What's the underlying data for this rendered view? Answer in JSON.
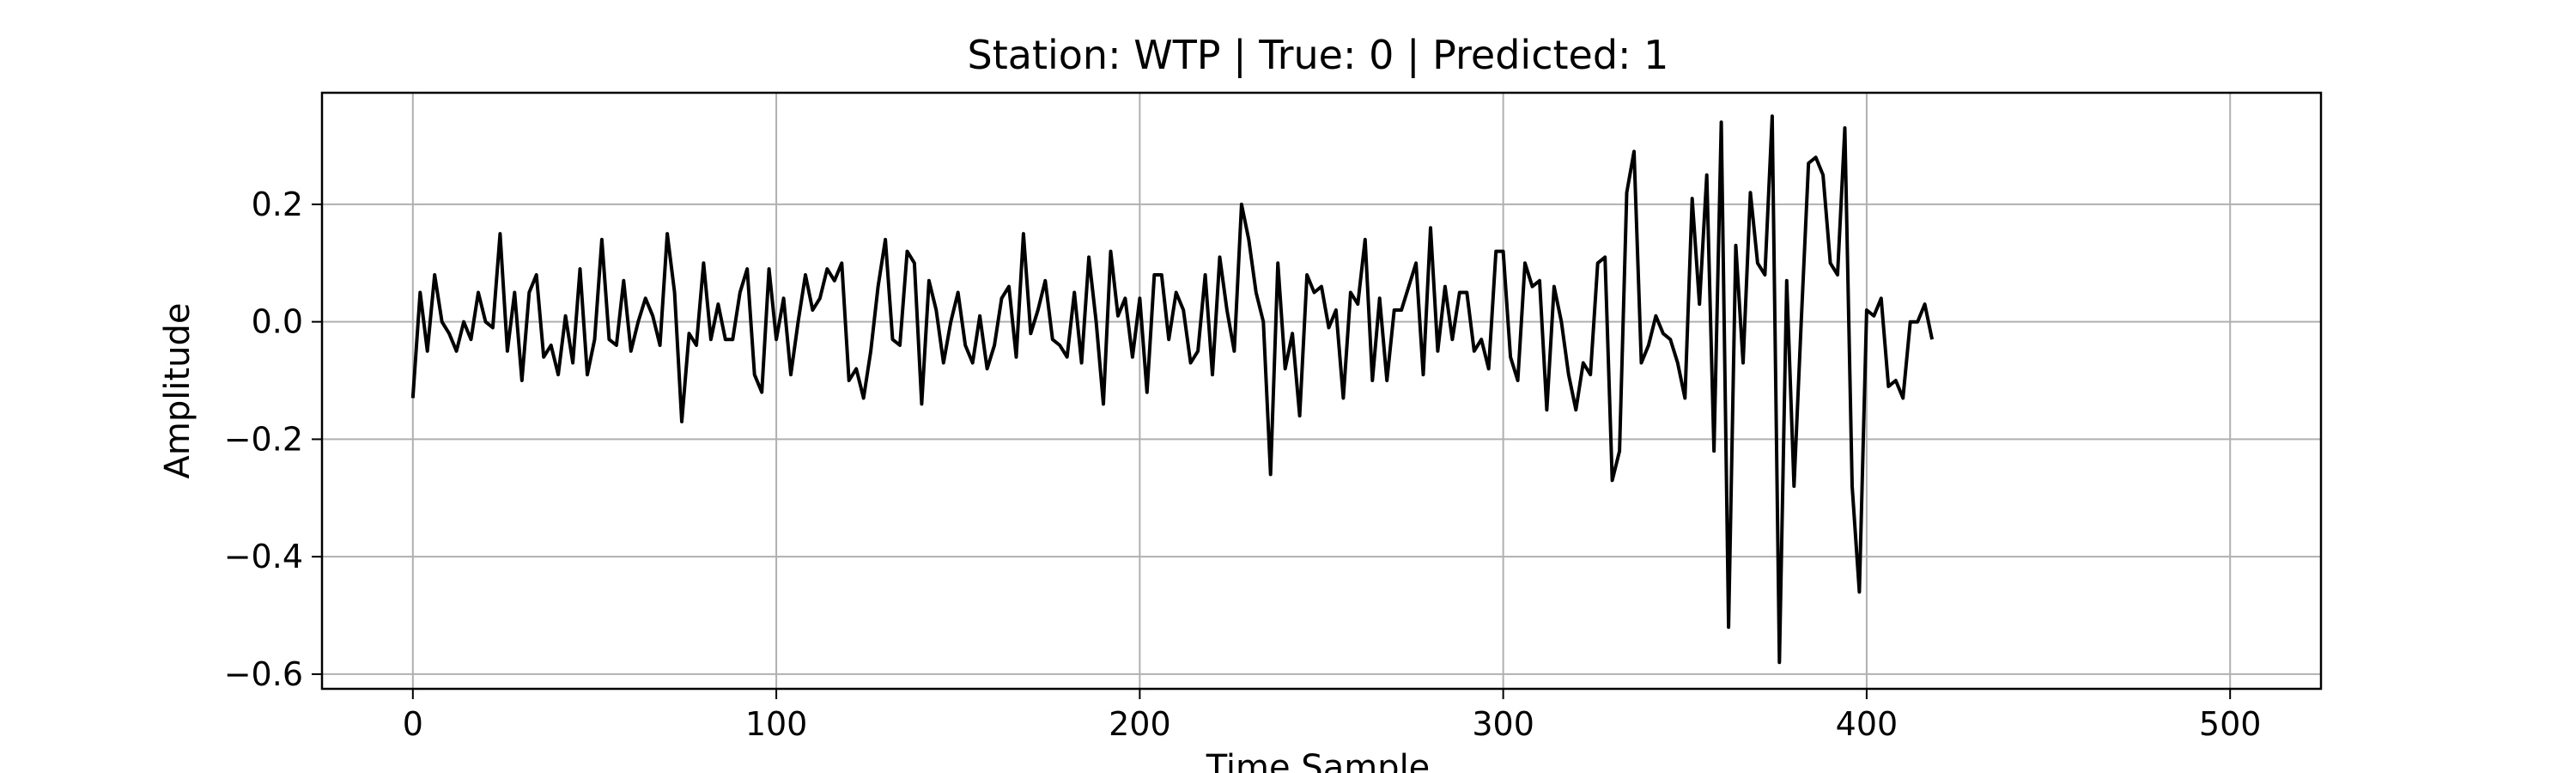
{
  "chart_data": {
    "type": "line",
    "title": "Station: WTP | True: 0 | Predicted: 1",
    "xlabel": "Time Sample",
    "ylabel": "Amplitude",
    "xlim": [
      -25,
      525
    ],
    "ylim": [
      -0.625,
      0.39
    ],
    "grid": true,
    "x_ticks": [
      0,
      100,
      200,
      300,
      400,
      500
    ],
    "x_tick_labels": [
      "0",
      "100",
      "200",
      "300",
      "400",
      "500"
    ],
    "y_ticks": [
      0.2,
      0.0,
      -0.2,
      -0.4,
      -0.6
    ],
    "y_tick_labels": [
      "0.2",
      "0.0",
      "−0.2",
      "−0.4",
      "−0.6"
    ],
    "series": [
      {
        "color": "#000000",
        "x_start": 0,
        "x_step": 2,
        "y": [
          -0.13,
          0.05,
          -0.05,
          0.08,
          0.0,
          -0.02,
          -0.05,
          0.0,
          -0.03,
          0.05,
          0.0,
          -0.01,
          0.15,
          -0.05,
          0.05,
          -0.1,
          0.05,
          0.08,
          -0.06,
          -0.04,
          -0.09,
          0.01,
          -0.07,
          0.09,
          -0.09,
          -0.03,
          0.14,
          -0.03,
          -0.04,
          0.07,
          -0.05,
          0.0,
          0.04,
          0.01,
          -0.04,
          0.15,
          0.05,
          -0.17,
          -0.02,
          -0.04,
          0.1,
          -0.03,
          0.03,
          -0.03,
          -0.03,
          0.05,
          0.09,
          -0.09,
          -0.12,
          0.09,
          -0.03,
          0.04,
          -0.09,
          0.0,
          0.08,
          0.02,
          0.04,
          0.09,
          0.07,
          0.1,
          -0.1,
          -0.08,
          -0.13,
          -0.05,
          0.06,
          0.14,
          -0.03,
          -0.04,
          0.12,
          0.1,
          -0.14,
          0.07,
          0.02,
          -0.07,
          0.0,
          0.05,
          -0.04,
          -0.07,
          0.01,
          -0.08,
          -0.04,
          0.04,
          0.06,
          -0.06,
          0.15,
          -0.02,
          0.02,
          0.07,
          -0.03,
          -0.04,
          -0.06,
          0.05,
          -0.07,
          0.11,
          0.0,
          -0.14,
          0.12,
          0.01,
          0.04,
          -0.06,
          0.04,
          -0.12,
          0.08,
          0.08,
          -0.03,
          0.05,
          0.02,
          -0.07,
          -0.05,
          0.08,
          -0.09,
          0.11,
          0.02,
          -0.05,
          0.2,
          0.14,
          0.05,
          0.0,
          -0.26,
          0.1,
          -0.08,
          -0.02,
          -0.16,
          0.08,
          0.05,
          0.06,
          -0.01,
          0.02,
          -0.13,
          0.05,
          0.03,
          0.14,
          -0.1,
          0.04,
          -0.1,
          0.02,
          0.02,
          0.06,
          0.1,
          -0.09,
          0.16,
          -0.05,
          0.06,
          -0.03,
          0.05,
          0.05,
          -0.05,
          -0.03,
          -0.08,
          0.12,
          0.12,
          -0.06,
          -0.1,
          0.1,
          0.06,
          0.07,
          -0.15,
          0.06,
          0.0,
          -0.09,
          -0.15,
          -0.07,
          -0.09,
          0.1,
          0.11,
          -0.27,
          -0.22,
          0.22,
          0.29,
          -0.07,
          -0.04,
          0.01,
          -0.02,
          -0.03,
          -0.07,
          -0.13,
          0.21,
          0.03,
          0.25,
          -0.22,
          0.34,
          -0.52,
          0.13,
          -0.07,
          0.22,
          0.1,
          0.08,
          0.35,
          -0.58,
          0.07,
          -0.28,
          0.0,
          0.27,
          0.28,
          0.25,
          0.1,
          0.08,
          0.33,
          -0.28,
          -0.46,
          0.02,
          0.01,
          0.04,
          -0.11,
          -0.1,
          -0.13,
          0.0,
          0.0,
          0.03,
          -0.03
        ]
      }
    ]
  }
}
